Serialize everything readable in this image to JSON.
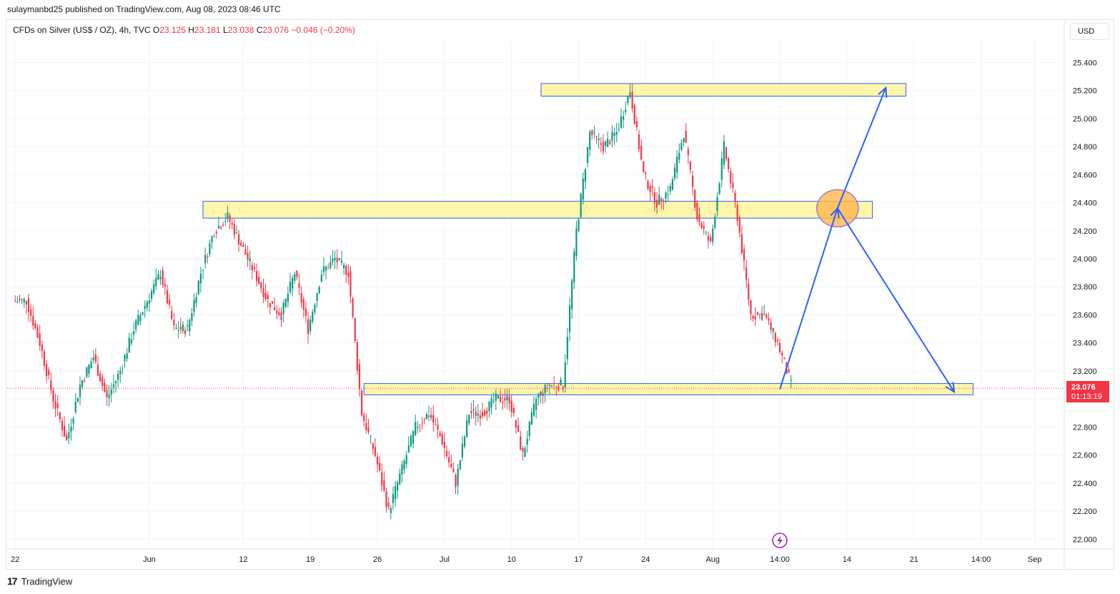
{
  "header": {
    "published_text": "sulaymanbd25 published on TradingView.com, Aug 08, 2023 08:46 UTC"
  },
  "legend": {
    "symbol": "CFDs on Silver (US$ / OZ), 4h, TVC",
    "open_label": "O",
    "open": "23.125",
    "high_label": "H",
    "high": "23.181",
    "low_label": "L",
    "low": "23.038",
    "close_label": "C",
    "close": "23.076",
    "change": "−0.046 (−0.20%)"
  },
  "currency_button": "USD",
  "price_tag": {
    "price": "23.076",
    "countdown": "01:13:19"
  },
  "footer": {
    "brand": "TradingView"
  },
  "colors": {
    "up": "#089981",
    "down": "#f23645",
    "zone_fill": "#fff59d",
    "zone_border": "#2962ff",
    "arrow": "#2962ff",
    "circle_fill": "#ffb74d",
    "circle_border": "#9c7bd6"
  },
  "chart_data": {
    "type": "candlestick",
    "timeframe": "4h",
    "y_ticks": [
      "22.000",
      "22.200",
      "22.400",
      "22.600",
      "22.800",
      "23.000",
      "23.200",
      "23.400",
      "23.600",
      "23.800",
      "24.000",
      "24.200",
      "24.400",
      "24.600",
      "24.800",
      "25.000",
      "25.200",
      "25.400"
    ],
    "ylim": [
      21.93,
      25.55
    ],
    "x_ticks": [
      {
        "label": "22",
        "x": 0
      },
      {
        "label": "Jun",
        "x": 10
      },
      {
        "label": "12",
        "x": 17
      },
      {
        "label": "19",
        "x": 22
      },
      {
        "label": "26",
        "x": 27
      },
      {
        "label": "Jul",
        "x": 32
      },
      {
        "label": "10",
        "x": 37
      },
      {
        "label": "17",
        "x": 42
      },
      {
        "label": "24",
        "x": 47
      },
      {
        "label": "Aug",
        "x": 52
      },
      {
        "label": "14:00",
        "x": 57
      },
      {
        "label": "14",
        "x": 62
      },
      {
        "label": "21",
        "x": 67
      },
      {
        "label": "14:00",
        "x": 72
      },
      {
        "label": "Sep",
        "x": 76
      }
    ],
    "xlim": [
      -0.6,
      78.2
    ],
    "series_close": [
      23.7,
      23.4,
      23.0,
      22.7,
      23.1,
      23.3,
      23.0,
      23.2,
      23.5,
      23.7,
      23.9,
      23.5,
      23.5,
      23.9,
      24.2,
      24.3,
      24.1,
      23.9,
      23.7,
      23.6,
      23.9,
      23.5,
      23.9,
      24.0,
      23.9,
      22.9,
      22.6,
      22.2,
      22.5,
      22.8,
      22.9,
      22.7,
      22.4,
      22.9,
      22.9,
      23.0,
      23.0,
      22.6,
      23.0,
      23.1,
      23.1,
      24.2,
      24.9,
      24.8,
      24.9,
      25.2,
      24.6,
      24.4,
      24.5,
      24.9,
      24.3,
      24.1,
      24.8,
      24.3,
      23.6,
      23.6,
      23.4,
      23.1
    ],
    "last_price": 23.076,
    "zones": [
      {
        "from_x": 39.2,
        "to_x": 66.4,
        "low": 25.16,
        "high": 25.25
      },
      {
        "from_x": 14.0,
        "to_x": 63.9,
        "low": 24.29,
        "high": 24.41
      },
      {
        "from_x": 26.0,
        "to_x": 71.4,
        "low": 23.03,
        "high": 23.11
      }
    ],
    "projection_path": [
      {
        "x": 57.0,
        "y": 23.07
      },
      {
        "x": 61.3,
        "y": 24.36
      },
      {
        "x": 70.0,
        "y": 23.05
      }
    ],
    "alt_projection": [
      {
        "x": 61.3,
        "y": 24.36
      },
      {
        "x": 64.9,
        "y": 25.22
      }
    ],
    "highlight": {
      "x": 61.3,
      "y": 24.36
    }
  }
}
